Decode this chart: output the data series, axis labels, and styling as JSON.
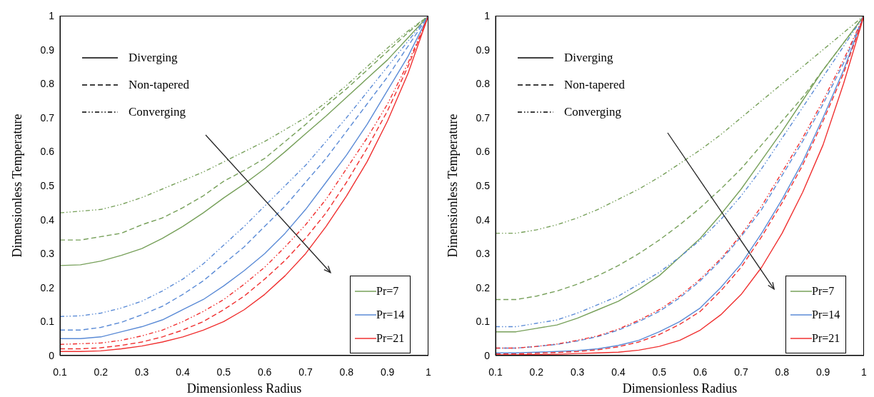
{
  "chart_data": [
    {
      "type": "line",
      "xlabel": "Dimensionless Radius",
      "ylabel": "Dimensionless Temperature",
      "x": [
        0.1,
        0.15,
        0.2,
        0.25,
        0.3,
        0.35,
        0.4,
        0.45,
        0.5,
        0.55,
        0.6,
        0.65,
        0.7,
        0.75,
        0.8,
        0.85,
        0.9,
        0.95,
        1
      ],
      "xlim": [
        0.1,
        1
      ],
      "xticks": [
        0.1,
        0.2,
        0.3,
        0.4,
        0.5,
        0.6,
        0.7,
        0.8,
        0.9,
        1
      ],
      "ylim": [
        0,
        1
      ],
      "yticks": [
        0,
        0.1,
        0.2,
        0.3,
        0.4,
        0.5,
        0.6,
        0.7,
        0.8,
        0.9,
        1
      ],
      "grid": false,
      "legend": "bottom right",
      "marker": "none",
      "annotations": [
        "Diverging",
        "Non-tapered",
        "Converging"
      ],
      "series": [
        {
          "name": "Pr=7",
          "color": "#77a05a",
          "line_style": "solid",
          "values": [
            0.265,
            0.267,
            0.278,
            0.295,
            0.315,
            0.345,
            0.38,
            0.42,
            0.464,
            0.505,
            0.55,
            0.6,
            0.653,
            0.705,
            0.76,
            0.815,
            0.87,
            0.935,
            1
          ]
        },
        {
          "color": "#77a05a",
          "line_style": "dashed",
          "values": [
            0.34,
            0.34,
            0.35,
            0.36,
            0.385,
            0.405,
            0.435,
            0.47,
            0.513,
            0.545,
            0.58,
            0.63,
            0.68,
            0.735,
            0.785,
            0.84,
            0.895,
            0.95,
            1
          ]
        },
        {
          "color": "#77a05a",
          "line_style": "dotted",
          "values": [
            0.42,
            0.425,
            0.43,
            0.445,
            0.465,
            0.49,
            0.515,
            0.54,
            0.57,
            0.6,
            0.63,
            0.665,
            0.7,
            0.745,
            0.795,
            0.85,
            0.905,
            0.955,
            1
          ]
        },
        {
          "name": "Pr=14",
          "color": "#5b8bd6",
          "line_style": "solid",
          "values": [
            0.05,
            0.05,
            0.055,
            0.07,
            0.085,
            0.105,
            0.135,
            0.165,
            0.205,
            0.25,
            0.3,
            0.36,
            0.43,
            0.51,
            0.59,
            0.68,
            0.78,
            0.88,
            1
          ]
        },
        {
          "color": "#5b8bd6",
          "line_style": "dashed",
          "values": [
            0.075,
            0.075,
            0.083,
            0.098,
            0.12,
            0.145,
            0.18,
            0.22,
            0.27,
            0.32,
            0.38,
            0.44,
            0.51,
            0.58,
            0.66,
            0.74,
            0.82,
            0.91,
            1
          ]
        },
        {
          "color": "#5b8bd6",
          "line_style": "dotted",
          "values": [
            0.115,
            0.117,
            0.125,
            0.14,
            0.16,
            0.19,
            0.225,
            0.27,
            0.325,
            0.38,
            0.44,
            0.5,
            0.56,
            0.63,
            0.7,
            0.775,
            0.85,
            0.925,
            1
          ]
        },
        {
          "name": "Pr=21",
          "color": "#f03030",
          "line_style": "solid",
          "values": [
            0.012,
            0.012,
            0.014,
            0.02,
            0.028,
            0.04,
            0.055,
            0.075,
            0.1,
            0.135,
            0.18,
            0.235,
            0.3,
            0.38,
            0.47,
            0.57,
            0.69,
            0.83,
            1
          ]
        },
        {
          "color": "#f03030",
          "line_style": "dashed",
          "values": [
            0.02,
            0.02,
            0.023,
            0.03,
            0.04,
            0.055,
            0.075,
            0.1,
            0.135,
            0.175,
            0.225,
            0.28,
            0.345,
            0.42,
            0.51,
            0.61,
            0.72,
            0.85,
            1
          ]
        },
        {
          "color": "#f03030",
          "line_style": "dotted",
          "values": [
            0.033,
            0.035,
            0.037,
            0.045,
            0.058,
            0.075,
            0.1,
            0.13,
            0.165,
            0.21,
            0.26,
            0.32,
            0.385,
            0.46,
            0.55,
            0.64,
            0.74,
            0.86,
            1
          ]
        }
      ]
    },
    {
      "type": "line",
      "xlabel": "Dimensionless Radius",
      "ylabel": "Dimensionless Temperature",
      "x": [
        0.1,
        0.15,
        0.2,
        0.25,
        0.3,
        0.35,
        0.4,
        0.45,
        0.5,
        0.55,
        0.6,
        0.65,
        0.7,
        0.75,
        0.8,
        0.85,
        0.9,
        0.95,
        1
      ],
      "xlim": [
        0.1,
        1
      ],
      "xticks": [
        0.1,
        0.2,
        0.3,
        0.4,
        0.5,
        0.6,
        0.7,
        0.8,
        0.9,
        1
      ],
      "ylim": [
        0,
        1
      ],
      "yticks": [
        0,
        0.1,
        0.2,
        0.3,
        0.4,
        0.5,
        0.6,
        0.7,
        0.8,
        0.9,
        1
      ],
      "grid": false,
      "legend": "bottom right",
      "marker": "none",
      "annotations": [
        "Diverging",
        "Non-tapered",
        "Converging"
      ],
      "series": [
        {
          "name": "Pr=7",
          "color": "#77a05a",
          "line_style": "solid",
          "values": [
            0.07,
            0.07,
            0.08,
            0.09,
            0.11,
            0.135,
            0.16,
            0.195,
            0.235,
            0.29,
            0.345,
            0.415,
            0.49,
            0.575,
            0.66,
            0.75,
            0.84,
            0.92,
            1
          ]
        },
        {
          "color": "#77a05a",
          "line_style": "dashed",
          "values": [
            0.165,
            0.165,
            0.175,
            0.19,
            0.21,
            0.235,
            0.265,
            0.3,
            0.34,
            0.385,
            0.435,
            0.49,
            0.55,
            0.62,
            0.69,
            0.76,
            0.84,
            0.92,
            1
          ]
        },
        {
          "color": "#77a05a",
          "line_style": "dotted",
          "values": [
            0.36,
            0.36,
            0.37,
            0.385,
            0.405,
            0.43,
            0.46,
            0.49,
            0.525,
            0.565,
            0.605,
            0.65,
            0.7,
            0.75,
            0.8,
            0.85,
            0.9,
            0.95,
            1
          ]
        },
        {
          "name": "Pr=14",
          "color": "#5b8bd6",
          "line_style": "solid",
          "values": [
            0.008,
            0.008,
            0.01,
            0.012,
            0.015,
            0.02,
            0.03,
            0.045,
            0.07,
            0.1,
            0.14,
            0.2,
            0.27,
            0.36,
            0.46,
            0.57,
            0.7,
            0.84,
            1
          ]
        },
        {
          "color": "#5b8bd6",
          "line_style": "dashed",
          "values": [
            0.022,
            0.022,
            0.027,
            0.033,
            0.043,
            0.056,
            0.075,
            0.1,
            0.13,
            0.17,
            0.22,
            0.28,
            0.35,
            0.43,
            0.53,
            0.63,
            0.74,
            0.86,
            1
          ]
        },
        {
          "color": "#5b8bd6",
          "line_style": "dotted",
          "values": [
            0.085,
            0.085,
            0.095,
            0.105,
            0.125,
            0.15,
            0.175,
            0.21,
            0.245,
            0.29,
            0.34,
            0.4,
            0.47,
            0.55,
            0.64,
            0.73,
            0.82,
            0.91,
            1
          ]
        },
        {
          "name": "Pr=21",
          "color": "#f03030",
          "line_style": "solid",
          "values": [
            0.002,
            0.002,
            0.003,
            0.004,
            0.006,
            0.008,
            0.01,
            0.016,
            0.027,
            0.045,
            0.075,
            0.12,
            0.18,
            0.26,
            0.36,
            0.48,
            0.62,
            0.8,
            1
          ]
        },
        {
          "color": "#f03030",
          "line_style": "dashed",
          "values": [
            0.005,
            0.005,
            0.007,
            0.009,
            0.012,
            0.017,
            0.026,
            0.04,
            0.062,
            0.092,
            0.13,
            0.19,
            0.26,
            0.35,
            0.45,
            0.56,
            0.69,
            0.83,
            1
          ]
        },
        {
          "color": "#f03030",
          "line_style": "dotted",
          "values": [
            0.022,
            0.022,
            0.027,
            0.034,
            0.045,
            0.058,
            0.078,
            0.104,
            0.135,
            0.175,
            0.225,
            0.285,
            0.355,
            0.44,
            0.54,
            0.64,
            0.75,
            0.87,
            1
          ]
        }
      ]
    }
  ]
}
